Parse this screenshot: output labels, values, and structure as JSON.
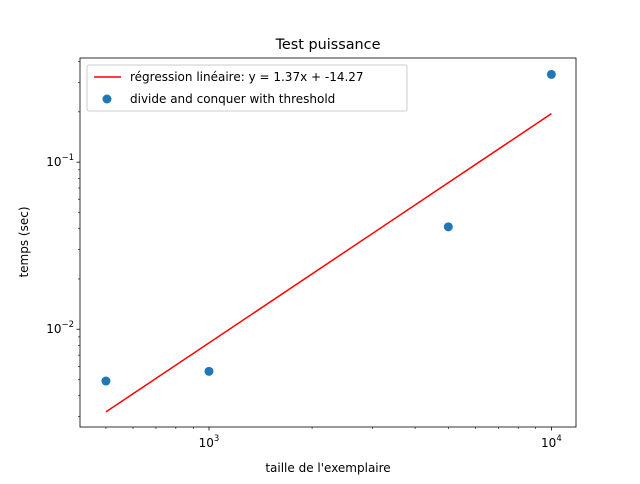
{
  "chart_data": {
    "type": "scatter",
    "title": "Test puissance",
    "xlabel": "taille de l'exemplaire",
    "ylabel": "temps (sec)",
    "xscale": "log",
    "yscale": "log",
    "xlim": [
      420,
      11800
    ],
    "ylim": [
      0.0026,
      0.42
    ],
    "grid": false,
    "legend_position": "top-left",
    "x_ticks": [
      {
        "value": 1000,
        "base": "10",
        "exp": "3"
      },
      {
        "value": 10000,
        "base": "10",
        "exp": "4"
      }
    ],
    "y_ticks": [
      {
        "value": 0.01,
        "base": "10",
        "exp": "−2"
      },
      {
        "value": 0.1,
        "base": "10",
        "exp": "−1"
      }
    ],
    "series": [
      {
        "name": "régression linéaire: y = 1.37x + -14.27",
        "kind": "line",
        "color": "#ff0000",
        "x": [
          500,
          10000
        ],
        "y": [
          0.0032,
          0.195
        ]
      },
      {
        "name": "divide and conquer with threshold",
        "kind": "scatter",
        "color": "#1f77b4",
        "x": [
          500,
          1000,
          5000,
          10000
        ],
        "y": [
          0.0049,
          0.0056,
          0.041,
          0.335
        ]
      }
    ]
  }
}
